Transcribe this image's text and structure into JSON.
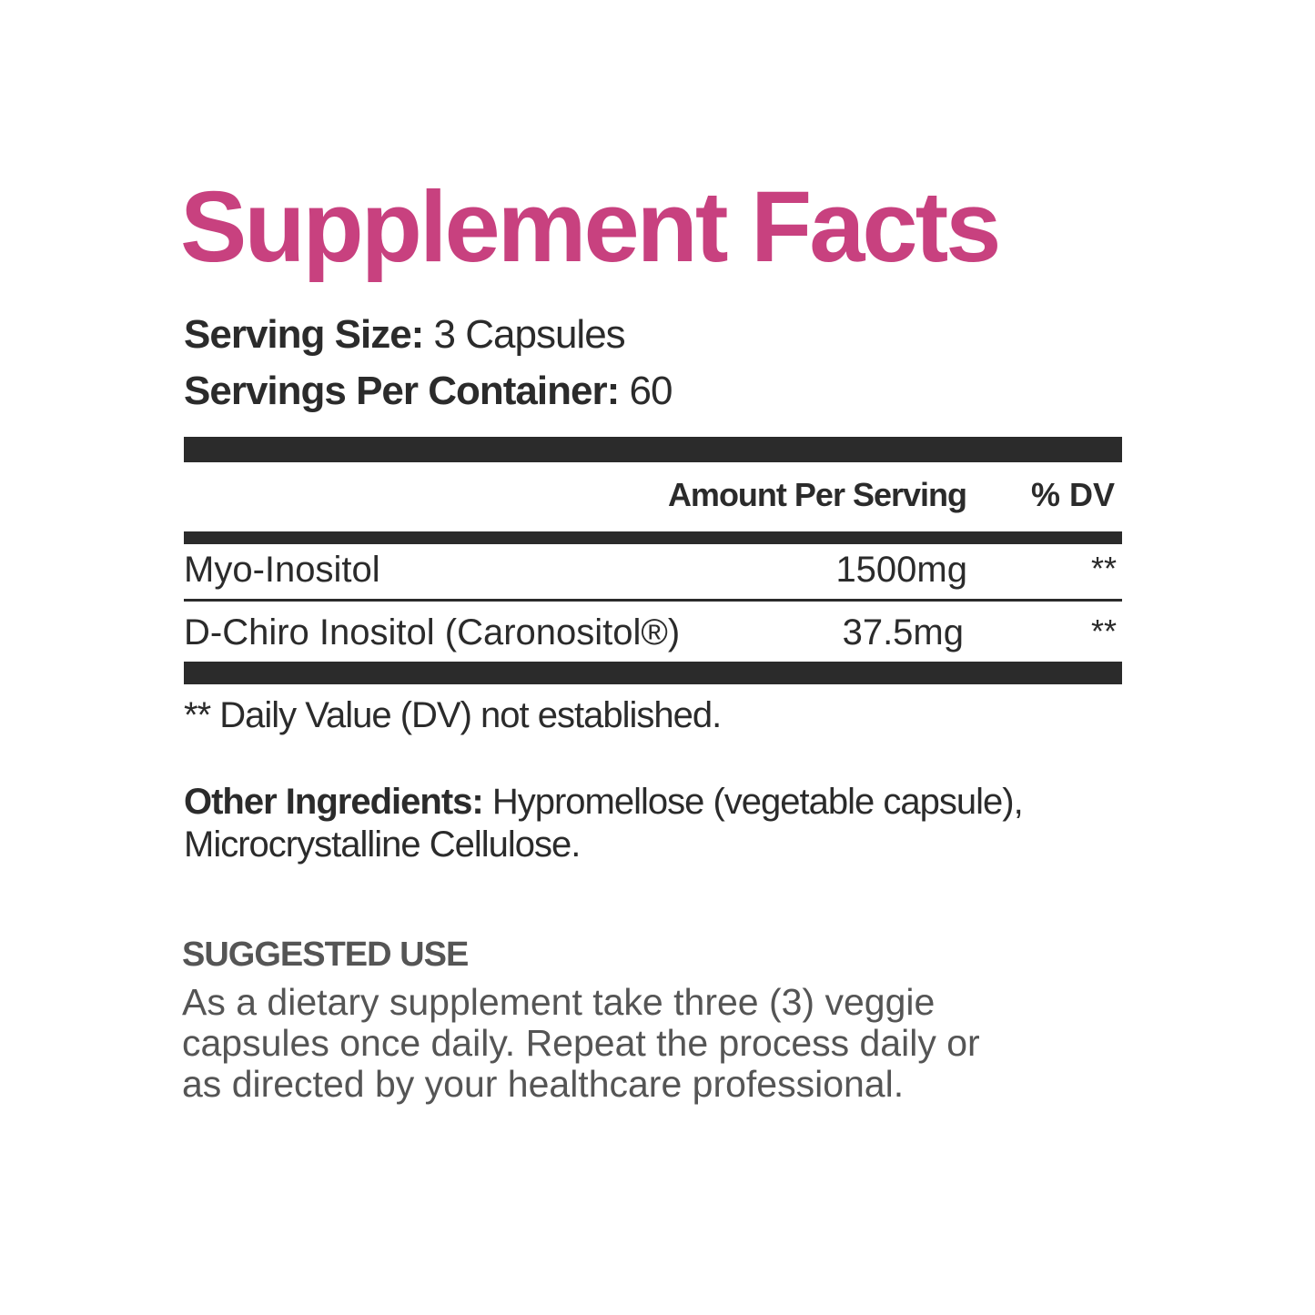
{
  "title": "Supplement Facts",
  "serving_size": {
    "label": "Serving Size:",
    "value": "3 Capsules"
  },
  "servings_per_container": {
    "label": "Servings Per Container:",
    "value": "60"
  },
  "table": {
    "header": [
      "Amount Per Serving",
      "% DV"
    ],
    "rows": [
      [
        "Myo-Inositol",
        "1500mg",
        "**"
      ],
      [
        "D-Chiro Inositol (Caronositol®)",
        "37.5mg",
        "**"
      ]
    ]
  },
  "footnote": "** Daily Value (DV) not established.",
  "other_ingredients": {
    "label": "Other Ingredients:",
    "text": "Hypromellose (vegetable capsule), Microcrystalline Cellulose."
  },
  "suggested_use": {
    "heading": "SUGGESTED USE",
    "lines": [
      "As a dietary supplement take three (3) veggie",
      "capsules once daily. Repeat the process daily or",
      "as directed by your healthcare professional."
    ]
  }
}
